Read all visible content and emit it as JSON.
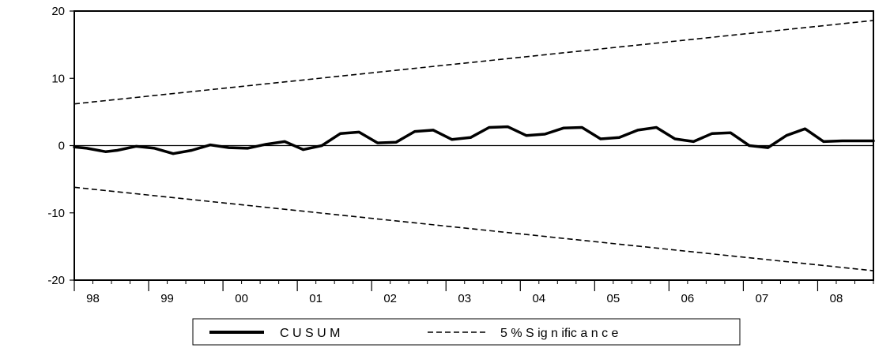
{
  "chart_data": {
    "type": "line",
    "title": "",
    "xlabel": "",
    "ylabel": "",
    "ylim": [
      -20,
      20
    ],
    "xlim": [
      1998.0,
      2008.75
    ],
    "grid": false,
    "legend_position": "bottom-center",
    "x_tick_labels": [
      "98",
      "99",
      "00",
      "01",
      "02",
      "03",
      "04",
      "05",
      "06",
      "07",
      "08"
    ],
    "x_tick_years": [
      1998,
      1999,
      2000,
      2001,
      2002,
      2003,
      2004,
      2005,
      2006,
      2007,
      2008
    ],
    "y_ticks": [
      20,
      10,
      0,
      -10,
      -20
    ],
    "y_tick_labels": [
      "20",
      "10",
      "0",
      "-10",
      "-20"
    ],
    "series": [
      {
        "name": "C U S U M",
        "style": "solid-thick",
        "color": "#000000",
        "x": [
          1998.0,
          1998.17,
          1998.42,
          1998.58,
          1998.83,
          1999.08,
          1999.33,
          1999.58,
          1999.83,
          2000.08,
          2000.33,
          2000.58,
          2000.83,
          2001.08,
          2001.33,
          2001.58,
          2001.83,
          2002.08,
          2002.33,
          2002.58,
          2002.83,
          2003.08,
          2003.33,
          2003.58,
          2003.83,
          2004.08,
          2004.33,
          2004.58,
          2004.83,
          2005.08,
          2005.33,
          2005.58,
          2005.83,
          2006.08,
          2006.33,
          2006.58,
          2006.83,
          2007.08,
          2007.33,
          2007.58,
          2007.83,
          2008.08,
          2008.33,
          2008.75
        ],
        "values": [
          -0.2,
          -0.4,
          -0.9,
          -0.7,
          -0.1,
          -0.4,
          -1.2,
          -0.7,
          0.1,
          -0.3,
          -0.4,
          0.2,
          0.6,
          -0.6,
          0.0,
          1.8,
          2.0,
          0.4,
          0.5,
          2.1,
          2.3,
          0.9,
          1.2,
          2.7,
          2.8,
          1.5,
          1.7,
          2.6,
          2.7,
          1.0,
          1.2,
          2.3,
          2.7,
          1.0,
          0.6,
          1.8,
          1.9,
          0.0,
          -0.3,
          1.5,
          2.5,
          0.6,
          0.7,
          0.7
        ]
      },
      {
        "name": "5 % S ig n ific a n c e",
        "style": "dashed",
        "color": "#000000",
        "bands": [
          {
            "x": [
              1998.0,
              2008.75
            ],
            "values": [
              6.2,
              18.6
            ]
          },
          {
            "x": [
              1998.0,
              2008.75
            ],
            "values": [
              -6.2,
              -18.6
            ]
          }
        ]
      }
    ]
  },
  "legend": {
    "items": [
      {
        "label": "C U S U M",
        "style": "solid-thick"
      },
      {
        "label": "5 % S ig n ific a n c e",
        "style": "dashed"
      }
    ]
  }
}
